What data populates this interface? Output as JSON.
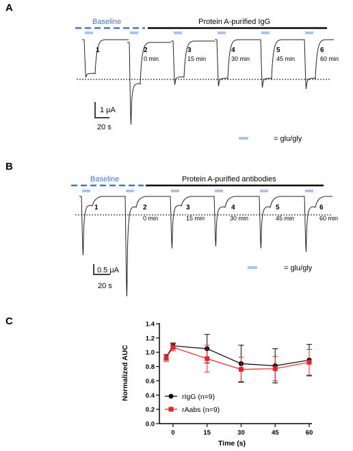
{
  "colors": {
    "baseline_blue": "#4472c4",
    "glu_bar": "#a9c4e6",
    "trace": "#222222",
    "series_rigg": "#000000",
    "series_raabs": "#e8212a"
  },
  "panel_a": {
    "letter": "A",
    "baseline_label": "Baseline",
    "treatment_label": "Protein A-purified IgG",
    "trace_numbers": [
      "1",
      "2",
      "3",
      "4",
      "5",
      "6"
    ],
    "time_labels": [
      "0 min",
      "15 min",
      "30 min",
      "45 min",
      "60 min"
    ],
    "scale_current": "1 μA",
    "scale_time": "20 s",
    "legend_text": "= glu/gly"
  },
  "panel_b": {
    "letter": "B",
    "baseline_label": "Baseline",
    "treatment_label": "Protein A-purified antibodies",
    "trace_numbers": [
      "1",
      "2",
      "3",
      "4",
      "5",
      "6"
    ],
    "time_labels": [
      "0 min",
      "15 min",
      "30 min",
      "45 min",
      "60 min"
    ],
    "scale_current": "0.5 μA",
    "scale_time": "20 s",
    "legend_text": "= glu/gly"
  },
  "panel_c": {
    "letter": "C"
  },
  "chart_data": {
    "type": "line",
    "title": "",
    "xlabel": "Time (s)",
    "ylabel": "Normalized AUC",
    "x_ticks": [
      "0",
      "15",
      "30",
      "45",
      "60"
    ],
    "y_ticks": [
      "0.0",
      "0.2",
      "0.4",
      "0.6",
      "0.8",
      "1.0",
      "1.2",
      "1.4"
    ],
    "xlim": [
      -6,
      60
    ],
    "ylim": [
      0,
      1.4
    ],
    "legend_position": "bottom-left",
    "series": [
      {
        "name": "rIgG (n=9)",
        "color": "#000000",
        "marker": "circle",
        "x": [
          -3,
          0,
          15,
          30,
          45,
          60
        ],
        "y": [
          0.93,
          1.09,
          1.05,
          0.84,
          0.81,
          0.89
        ],
        "err": [
          0.04,
          0.04,
          0.2,
          0.26,
          0.24,
          0.22
        ]
      },
      {
        "name": "rAabs (n=9)",
        "color": "#e8212a",
        "marker": "square",
        "x": [
          -3,
          0,
          15,
          30,
          45,
          60
        ],
        "y": [
          0.92,
          1.07,
          0.91,
          0.76,
          0.77,
          0.86
        ],
        "err": [
          0.05,
          0.05,
          0.19,
          0.17,
          0.17,
          0.18
        ]
      }
    ]
  }
}
